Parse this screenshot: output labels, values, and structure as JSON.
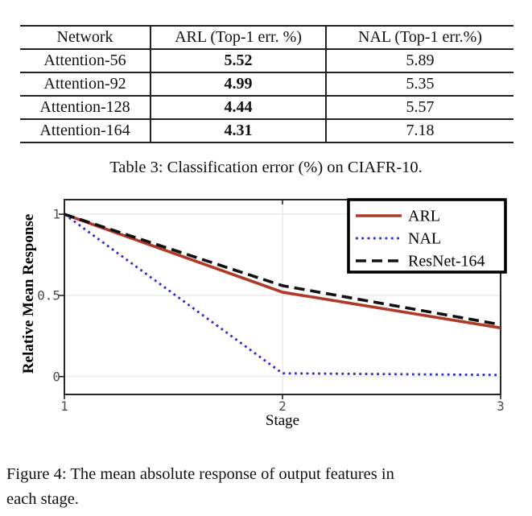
{
  "table": {
    "columns": [
      "Network",
      "ARL (Top-1 err. %)",
      "NAL (Top-1 err.%)"
    ],
    "rows": [
      {
        "network": "Attention-56",
        "arl": "5.52",
        "nal": "5.89"
      },
      {
        "network": "Attention-92",
        "arl": "4.99",
        "nal": "5.35"
      },
      {
        "network": "Attention-128",
        "arl": "4.44",
        "nal": "5.57"
      },
      {
        "network": "Attention-164",
        "arl": "4.31",
        "nal": "7.18"
      }
    ],
    "caption": "Table 3: Classification error (%) on CIAFR-10."
  },
  "figure": {
    "caption_line1": "Figure 4: The mean absolute response of output features in",
    "caption_line2": "each stage."
  },
  "chart_data": {
    "type": "line",
    "title": "",
    "x": [
      1,
      2,
      3
    ],
    "series": [
      {
        "name": "ARL",
        "values": [
          1.0,
          0.52,
          0.3
        ],
        "color": "#b03a28",
        "style": "solid"
      },
      {
        "name": "NAL",
        "values": [
          1.0,
          0.02,
          0.01
        ],
        "color": "#2b2bd0",
        "style": "dotted"
      },
      {
        "name": "ResNet-164",
        "values": [
          1.0,
          0.56,
          0.32
        ],
        "color": "#111111",
        "style": "dashed"
      }
    ],
    "xlabel": "Stage",
    "ylabel": "Relative Mean Response",
    "xtick_labels": [
      "1",
      "2",
      "3"
    ],
    "xtick_values": [
      1,
      2,
      3
    ],
    "ytick_labels": [
      "0",
      "0.5",
      "1"
    ],
    "ytick_values": [
      0,
      0.5,
      1
    ],
    "xlim": [
      1,
      3
    ],
    "ylim": [
      -0.11,
      1.09
    ],
    "grid": true,
    "legend_position": "top-right",
    "axis_color": "#262626",
    "grid_color": "#e6e6e6",
    "tick_label_color": "#4d4d4d"
  }
}
